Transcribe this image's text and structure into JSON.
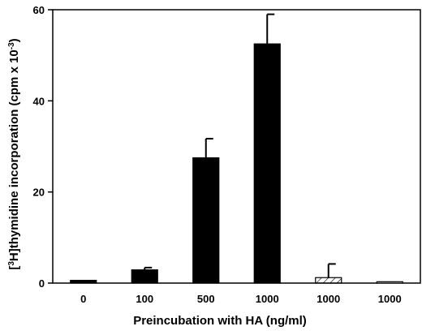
{
  "chart_data": {
    "type": "bar",
    "categories": [
      "0",
      "100",
      "500",
      "1000",
      "1000",
      "1000"
    ],
    "values": [
      0.6,
      2.9,
      27.5,
      52.5,
      1.2,
      0.3
    ],
    "errors": [
      0,
      0.5,
      4.2,
      6.5,
      3.0,
      0
    ],
    "bar_fills": [
      "solid",
      "solid",
      "solid",
      "solid",
      "hatched",
      "open"
    ],
    "xlabel": "Preincubation with HA (ng/ml)",
    "ylabel": {
      "prefix": "[",
      "sup1": "3",
      "middle": "H]thymidine incorporation (cpm x 10",
      "sup2": "-3",
      "suffix": ")"
    },
    "ylim": [
      0,
      60
    ],
    "yticks": [
      0,
      20,
      40,
      60
    ],
    "grid": false,
    "colors": {
      "bar": "#000000",
      "axis": "#000000"
    }
  }
}
